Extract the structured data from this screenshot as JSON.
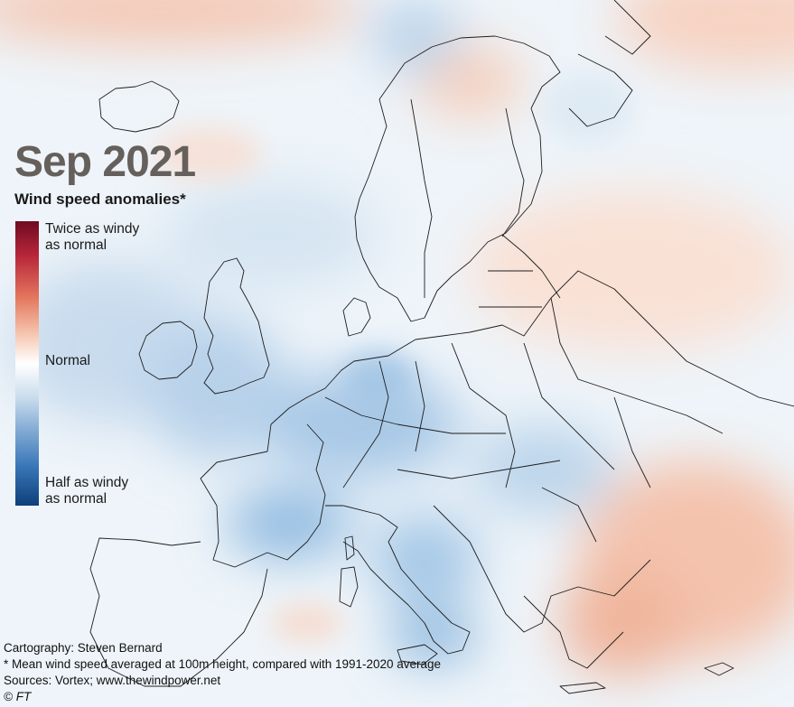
{
  "title": "Sep 2021",
  "subtitle": "Wind speed anomalies*",
  "legend": {
    "top_label_1": "Twice as windy",
    "top_label_2": "as normal",
    "mid_label": "Normal",
    "bottom_label_1": "Half as windy",
    "bottom_label_2": "as normal",
    "colors": [
      "#6f0a22",
      "#e4775f",
      "#ffffff",
      "#7fa9d3",
      "#0e3f7a"
    ]
  },
  "credits": {
    "cartography": "Cartography: Steven Bernard",
    "footnote": "* Mean wind speed averaged at 100m height, compared with 1991-2020 average",
    "sources": "Sources: Vortex; www.thewindpower.net",
    "copyright": "© FT"
  }
}
